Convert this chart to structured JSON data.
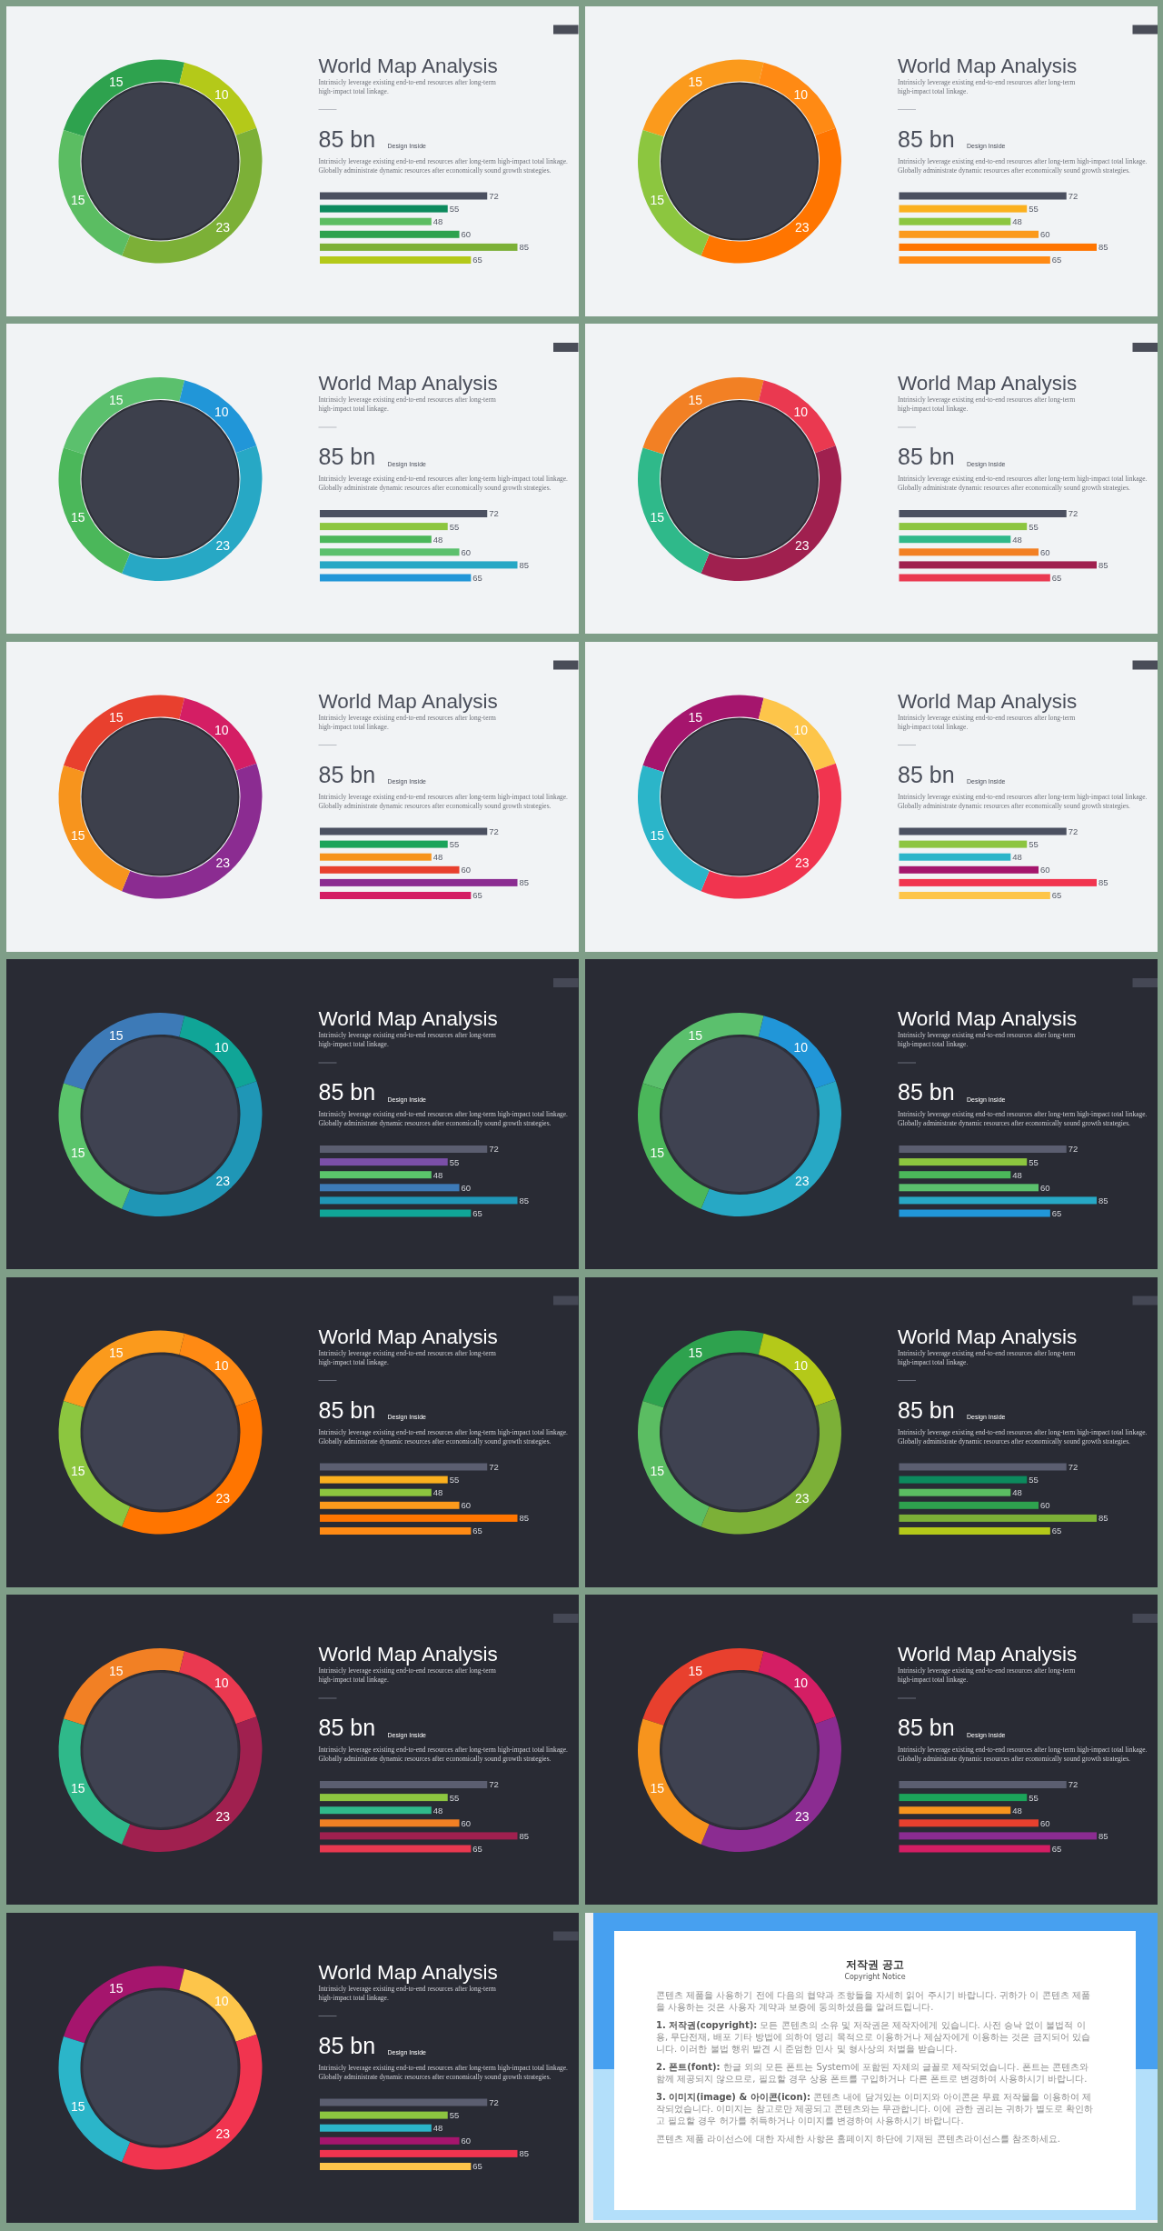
{
  "chart_data": [
    {
      "type": "donut",
      "categories": [
        null,
        null,
        null,
        null
      ],
      "values": [
        15,
        10,
        23,
        15
      ],
      "colors": [
        "#2ea24e",
        "#b4c919",
        "#7cb037",
        "#5bbd62"
      ],
      "data_labels": true
    },
    {
      "type": "bar",
      "orientation": "horizontal",
      "title": "World Map Analysis",
      "subtitle": "Intrinsicly leverage existing end-to-end resources after long-term high-impact total linkage.",
      "annotations": [
        "85 bn",
        "Design Inside",
        "Intrinsicly leverage existing end-to-end resources after long-term high-impact total linkage. Globally administrate dynamic resources after economically sound growth strategies."
      ],
      "categories": [
        null,
        null,
        null,
        null,
        null,
        null
      ],
      "values": [
        72,
        55,
        48,
        60,
        85,
        65
      ],
      "colors": [
        "#4b5060",
        "#0c8a5d",
        "#5bbd62",
        "#2ea24e",
        "#7cb037",
        "#b4c919"
      ],
      "data_labels": true
    },
    {
      "type": "donut",
      "categories": [
        null,
        null,
        null,
        null
      ],
      "values": [
        15,
        10,
        23,
        15
      ],
      "colors": [
        "#fb9a1c",
        "#ff8a14",
        "#ff7500",
        "#8cc63f"
      ],
      "data_labels": true
    },
    {
      "type": "bar",
      "orientation": "horizontal",
      "title": "World Map Analysis",
      "subtitle": "Intrinsicly leverage existing end-to-end resources after long-term high-impact total linkage.",
      "annotations": [
        "85 bn",
        "Design Inside",
        "Intrinsicly leverage existing end-to-end resources after long-term high-impact total linkage. Globally administrate dynamic resources after economically sound growth strategies."
      ],
      "categories": [
        null,
        null,
        null,
        null,
        null,
        null
      ],
      "values": [
        72,
        55,
        48,
        60,
        85,
        65
      ],
      "colors": [
        "#4b5060",
        "#fbb01e",
        "#8cc63f",
        "#fb9a1c",
        "#ff7500",
        "#ff8a14"
      ],
      "data_labels": true
    },
    {
      "type": "donut",
      "categories": [
        null,
        null,
        null,
        null
      ],
      "values": [
        15,
        10,
        23,
        15
      ],
      "colors": [
        "#5bc06d",
        "#2196d8",
        "#27a8c5",
        "#4bb75a"
      ],
      "data_labels": true
    },
    {
      "type": "bar",
      "orientation": "horizontal",
      "title": "World Map Analysis",
      "subtitle": "Intrinsicly leverage existing end-to-end resources after long-term high-impact total linkage.",
      "annotations": [
        "85 bn",
        "Design Inside",
        "Intrinsicly leverage existing end-to-end resources after long-term high-impact total linkage. Globally administrate dynamic resources after economically sound growth strategies."
      ],
      "categories": [
        null,
        null,
        null,
        null,
        null,
        null
      ],
      "values": [
        72,
        55,
        48,
        60,
        85,
        65
      ],
      "colors": [
        "#4b5060",
        "#8cc63f",
        "#4bb75a",
        "#5bc06d",
        "#27a8c5",
        "#2196d8"
      ],
      "data_labels": true
    },
    {
      "type": "donut",
      "categories": [
        null,
        null,
        null,
        null
      ],
      "values": [
        15,
        10,
        23,
        15
      ],
      "colors": [
        "#f28024",
        "#ea3950",
        "#a0204f",
        "#2fb98a"
      ],
      "data_labels": true
    },
    {
      "type": "bar",
      "orientation": "horizontal",
      "title": "World Map Analysis",
      "subtitle": "Intrinsicly leverage existing end-to-end resources after long-term high-impact total linkage.",
      "annotations": [
        "85 bn",
        "Design Inside",
        "Intrinsicly leverage existing end-to-end resources after long-term high-impact total linkage. Globally administrate dynamic resources after economically sound growth strategies."
      ],
      "categories": [
        null,
        null,
        null,
        null,
        null,
        null
      ],
      "values": [
        72,
        55,
        48,
        60,
        85,
        65
      ],
      "colors": [
        "#4b5060",
        "#8cc540",
        "#2fb98a",
        "#f28024",
        "#a0204f",
        "#ea3950"
      ],
      "data_labels": true
    },
    {
      "type": "donut",
      "categories": [
        null,
        null,
        null,
        null
      ],
      "values": [
        15,
        10,
        23,
        15
      ],
      "colors": [
        "#e8402e",
        "#d41e64",
        "#8b2c91",
        "#f7941d"
      ],
      "data_labels": true
    },
    {
      "type": "bar",
      "orientation": "horizontal",
      "title": "World Map Analysis",
      "subtitle": "Intrinsicly leverage existing end-to-end resources after long-term high-impact total linkage.",
      "annotations": [
        "85 bn",
        "Design Inside",
        "Intrinsicly leverage existing end-to-end resources after long-term high-impact total linkage. Globally administrate dynamic resources after economically sound growth strategies."
      ],
      "categories": [
        null,
        null,
        null,
        null,
        null,
        null
      ],
      "values": [
        72,
        55,
        48,
        60,
        85,
        65
      ],
      "colors": [
        "#4b5060",
        "#1ba45a",
        "#f7941d",
        "#e8402e",
        "#8b2c91",
        "#d41e64"
      ],
      "data_labels": true
    },
    {
      "type": "donut",
      "categories": [
        null,
        null,
        null,
        null
      ],
      "values": [
        15,
        10,
        23,
        15
      ],
      "colors": [
        "#a5156d",
        "#fdc54a",
        "#f1344f",
        "#2bb5c9"
      ],
      "data_labels": true
    },
    {
      "type": "bar",
      "orientation": "horizontal",
      "title": "World Map Analysis",
      "subtitle": "Intrinsicly leverage existing end-to-end resources after long-term high-impact total linkage.",
      "annotations": [
        "85 bn",
        "Design Inside",
        "Intrinsicly leverage existing end-to-end resources after long-term high-impact total linkage. Globally administrate dynamic resources after economically sound growth strategies."
      ],
      "categories": [
        null,
        null,
        null,
        null,
        null,
        null
      ],
      "values": [
        72,
        55,
        48,
        60,
        85,
        65
      ],
      "colors": [
        "#4b5060",
        "#8cc540",
        "#2bb5c9",
        "#a5156d",
        "#f1344f",
        "#fdc54a"
      ],
      "data_labels": true
    },
    {
      "type": "donut",
      "categories": [
        null,
        null,
        null,
        null
      ],
      "values": [
        15,
        10,
        23,
        15
      ],
      "colors": [
        "#3d7ab7",
        "#10a597",
        "#1f96b6",
        "#5bc46b"
      ],
      "data_labels": true
    },
    {
      "type": "bar",
      "orientation": "horizontal",
      "title": "World Map Analysis",
      "subtitle": "Intrinsicly leverage existing end-to-end resources after long-term high-impact total linkage.",
      "annotations": [
        "85 bn",
        "Design Inside",
        "Intrinsicly leverage existing end-to-end resources after long-term high-impact total linkage. Globally administrate dynamic resources after economically sound growth strategies."
      ],
      "categories": [
        null,
        null,
        null,
        null,
        null,
        null
      ],
      "values": [
        72,
        55,
        48,
        60,
        85,
        65
      ],
      "colors": [
        "#5b5e70",
        "#7b4fa8",
        "#5bc46b",
        "#3d7ab7",
        "#1f96b6",
        "#10a597"
      ],
      "data_labels": true
    },
    {
      "type": "donut",
      "categories": [
        null,
        null,
        null,
        null
      ],
      "values": [
        15,
        10,
        23,
        15
      ],
      "colors": [
        "#5bc06d",
        "#2196d8",
        "#27a8c5",
        "#4bb75a"
      ],
      "data_labels": true
    },
    {
      "type": "bar",
      "orientation": "horizontal",
      "title": "World Map Analysis",
      "subtitle": "Intrinsicly leverage existing end-to-end resources after long-term high-impact total linkage.",
      "annotations": [
        "85 bn",
        "Design Inside",
        "Intrinsicly leverage existing end-to-end resources after long-term high-impact total linkage. Globally administrate dynamic resources after economically sound growth strategies."
      ],
      "categories": [
        null,
        null,
        null,
        null,
        null,
        null
      ],
      "values": [
        72,
        55,
        48,
        60,
        85,
        65
      ],
      "colors": [
        "#5b5e70",
        "#8cc63f",
        "#4bb75a",
        "#5bc06d",
        "#27a8c5",
        "#2196d8"
      ],
      "data_labels": true
    },
    {
      "type": "donut",
      "categories": [
        null,
        null,
        null,
        null
      ],
      "values": [
        15,
        10,
        23,
        15
      ],
      "colors": [
        "#fb9a1c",
        "#ff8a14",
        "#ff7500",
        "#8cc63f"
      ],
      "data_labels": true
    },
    {
      "type": "bar",
      "orientation": "horizontal",
      "title": "World Map Analysis",
      "subtitle": "Intrinsicly leverage existing end-to-end resources after long-term high-impact total linkage.",
      "annotations": [
        "85 bn",
        "Design Inside",
        "Intrinsicly leverage existing end-to-end resources after long-term high-impact total linkage. Globally administrate dynamic resources after economically sound growth strategies."
      ],
      "categories": [
        null,
        null,
        null,
        null,
        null,
        null
      ],
      "values": [
        72,
        55,
        48,
        60,
        85,
        65
      ],
      "colors": [
        "#5b5e70",
        "#fbb01e",
        "#8cc63f",
        "#fb9a1c",
        "#ff7500",
        "#ff8a14"
      ],
      "data_labels": true
    },
    {
      "type": "donut",
      "categories": [
        null,
        null,
        null,
        null
      ],
      "values": [
        15,
        10,
        23,
        15
      ],
      "colors": [
        "#2ea24e",
        "#b4c919",
        "#7cb037",
        "#5bbd62"
      ],
      "data_labels": true
    },
    {
      "type": "bar",
      "orientation": "horizontal",
      "title": "World Map Analysis",
      "subtitle": "Intrinsicly leverage existing end-to-end resources after long-term high-impact total linkage.",
      "annotations": [
        "85 bn",
        "Design Inside",
        "Intrinsicly leverage existing end-to-end resources after long-term high-impact total linkage. Globally administrate dynamic resources after economically sound growth strategies."
      ],
      "categories": [
        null,
        null,
        null,
        null,
        null,
        null
      ],
      "values": [
        72,
        55,
        48,
        60,
        85,
        65
      ],
      "colors": [
        "#5b5e70",
        "#0c8a5d",
        "#5bbd62",
        "#2ea24e",
        "#7cb037",
        "#b4c919"
      ],
      "data_labels": true
    },
    {
      "type": "donut",
      "categories": [
        null,
        null,
        null,
        null
      ],
      "values": [
        15,
        10,
        23,
        15
      ],
      "colors": [
        "#f28024",
        "#ea3950",
        "#a0204f",
        "#2fb98a"
      ],
      "data_labels": true
    },
    {
      "type": "bar",
      "orientation": "horizontal",
      "title": "World Map Analysis",
      "subtitle": "Intrinsicly leverage existing end-to-end resources after long-term high-impact total linkage.",
      "annotations": [
        "85 bn",
        "Design Inside",
        "Intrinsicly leverage existing end-to-end resources after long-term high-impact total linkage. Globally administrate dynamic resources after economically sound growth strategies."
      ],
      "categories": [
        null,
        null,
        null,
        null,
        null,
        null
      ],
      "values": [
        72,
        55,
        48,
        60,
        85,
        65
      ],
      "colors": [
        "#5b5e70",
        "#8cc540",
        "#2fb98a",
        "#f28024",
        "#a0204f",
        "#ea3950"
      ],
      "data_labels": true
    },
    {
      "type": "donut",
      "categories": [
        null,
        null,
        null,
        null
      ],
      "values": [
        15,
        10,
        23,
        15
      ],
      "colors": [
        "#e8402e",
        "#d41e64",
        "#8b2c91",
        "#f7941d"
      ],
      "data_labels": true
    },
    {
      "type": "bar",
      "orientation": "horizontal",
      "title": "World Map Analysis",
      "subtitle": "Intrinsicly leverage existing end-to-end resources after long-term high-impact total linkage.",
      "annotations": [
        "85 bn",
        "Design Inside",
        "Intrinsicly leverage existing end-to-end resources after long-term high-impact total linkage. Globally administrate dynamic resources after economically sound growth strategies."
      ],
      "categories": [
        null,
        null,
        null,
        null,
        null,
        null
      ],
      "values": [
        72,
        55,
        48,
        60,
        85,
        65
      ],
      "colors": [
        "#5b5e70",
        "#1ba45a",
        "#f7941d",
        "#e8402e",
        "#8b2c91",
        "#d41e64"
      ],
      "data_labels": true
    },
    {
      "type": "donut",
      "categories": [
        null,
        null,
        null,
        null
      ],
      "values": [
        15,
        10,
        23,
        15
      ],
      "colors": [
        "#a5156d",
        "#fdc54a",
        "#f1344f",
        "#2bb5c9"
      ],
      "data_labels": true
    },
    {
      "type": "bar",
      "orientation": "horizontal",
      "title": "World Map Analysis",
      "subtitle": "Intrinsicly leverage existing end-to-end resources after long-term high-impact total linkage.",
      "annotations": [
        "85 bn",
        "Design Inside",
        "Intrinsicly leverage existing end-to-end resources after long-term high-impact total linkage. Globally administrate dynamic resources after economically sound growth strategies."
      ],
      "categories": [
        null,
        null,
        null,
        null,
        null,
        null
      ],
      "values": [
        72,
        55,
        48,
        60,
        85,
        65
      ],
      "colors": [
        "#5b5e70",
        "#8cc540",
        "#2bb5c9",
        "#a5156d",
        "#f1344f",
        "#fdc54a"
      ],
      "data_labels": true
    },
    {
      "type": "other",
      "title": "저작권 공고",
      "subtitle": "Copyright Notice",
      "annotations": [
        "콘텐츠 제품을 사용하기 전에 다음의 협약과 조항들을 자세히 읽어 주시기 바랍니다. 귀하가 이 콘텐츠 제품을 사용하는 것은 사용자 계약과 보증에 동의하셨음을 알려드립니다.",
        "1. 저작권(copyright): 모든 콘텐츠의 소유 및 저작권은 제작자에게 있습니다. 사전 승낙 없이 불법적 이용, 무단전재, 배포 기타 방법에 의하여 영리 목적으로 이용하거나 제삼자에게 이용하는 것은 금지되어 있습니다. 이러한 불법 행위 발견 시 준엄한 민사 및 형사상의 처벌을 받습니다.",
        "2. 폰트(font): 한글 외의 모든 폰트는 System에 포함된 자체의 글꼴로 제작되었습니다. 폰트는 콘텐츠와 함께 제공되지 않으므로, 필요할 경우 상용 폰트를 구입하거나 다른 폰트로 변경하여 사용하시기 바랍니다.",
        "3. 이미지(image) & 아이콘(icon): 콘텐츠 내에 담겨있는 이미지와 아이콘은 무료 저작물을 이용하여 제작되었습니다. 이미지는 참고로만 제공되고 콘텐츠와는 무관합니다. 이에 관한 권리는 귀하가 별도로 확인하고 필요할 경우 허가를 취득하거나 이미지를 변경하여 사용하시기 바랍니다.",
        "콘텐츠 제품 라이선스에 대한 자세한 사항은 홈페이지 하단에 기재된 콘텐츠라이선스를 참조하세요."
      ]
    }
  ]
}
